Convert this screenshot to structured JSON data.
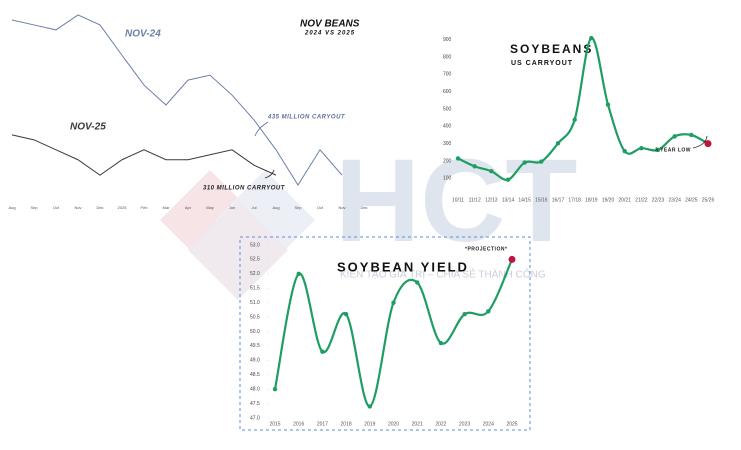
{
  "chart_data": [
    {
      "type": "line",
      "title": "NOV BEANS",
      "subtitle": "2024 VS 2025",
      "categories": [
        "Aug",
        "Sep",
        "Oct",
        "Nov",
        "Dec",
        "2025",
        "Feb",
        "Mar",
        "Apr",
        "May",
        "Jun",
        "Jul",
        "Aug",
        "Sep",
        "Oct",
        "Nov",
        "Dec"
      ],
      "series": [
        {
          "name": "NOV-24",
          "color": "#6b7fa8",
          "values": [
            1358,
            1347,
            1336,
            1369,
            1347,
            1280,
            1214,
            1170,
            1225,
            1236,
            1192,
            1137,
            1071,
            993,
            1071,
            1015,
            null
          ]
        },
        {
          "name": "NOV-25",
          "color": "#3a3a3a",
          "values": [
            1104,
            1093,
            1071,
            1049,
            1015,
            1049,
            1071,
            1049,
            1049,
            1060,
            1071,
            1037,
            1015,
            null,
            null,
            null,
            null
          ]
        }
      ],
      "ylim": [
        960,
        1380
      ],
      "annotations": [
        "435 MILLION CARYOUT",
        "310 MILLION CARRYOUT"
      ]
    },
    {
      "type": "line",
      "title": "SOYBEANS",
      "subtitle": "US CARRYOUT",
      "categories": [
        "10/11",
        "11/12",
        "12/13",
        "13/14",
        "14/15",
        "15/16",
        "16/17",
        "17/18",
        "18/19",
        "19/20",
        "20/21",
        "21/22",
        "22/23",
        "23/24",
        "24/25",
        "25/26"
      ],
      "values": [
        215,
        169,
        141,
        92,
        191,
        197,
        302,
        438,
        909,
        525,
        257,
        274,
        264,
        342,
        350,
        300
      ],
      "color": "#1f9d63",
      "last_point_color": "#c0143c",
      "smooth": true,
      "markers": true,
      "ylim": [
        50,
        950
      ],
      "yticks": [
        100,
        200,
        300,
        400,
        500,
        600,
        700,
        800,
        900
      ],
      "annotations": [
        "3 YEAR LOW"
      ]
    },
    {
      "type": "line",
      "title": "SOYBEAN YIELD",
      "categories": [
        "2015",
        "2016",
        "2017",
        "2018",
        "2019",
        "2020",
        "2021",
        "2022",
        "2023",
        "2024",
        "2025"
      ],
      "values": [
        48.0,
        52.0,
        49.3,
        50.6,
        47.4,
        51.0,
        51.7,
        49.6,
        50.6,
        50.7,
        52.5
      ],
      "color": "#1f9d63",
      "last_point_color": "#c0143c",
      "smooth": true,
      "markers": true,
      "ylim": [
        47,
        53
      ],
      "yticks": [
        {
          "value": 53,
          "label": "53.0"
        },
        52.5,
        {
          "value": 52,
          "label": "52.0"
        },
        51.5,
        {
          "value": 51,
          "label": "51.0"
        },
        50.5,
        {
          "value": 50,
          "label": "50.0"
        },
        49.5,
        {
          "value": 49,
          "label": "49.0"
        },
        48.5,
        {
          "value": 48,
          "label": "48.0"
        },
        47.5,
        {
          "value": 47,
          "label": "47.0"
        }
      ],
      "annotations": [
        "*PROJECTION*"
      ]
    }
  ],
  "watermark": {
    "logo": "HCT",
    "slogan": "KIẾN TẠO GIÁ TRỊ – CHIA SẺ THÀNH CÔNG"
  }
}
